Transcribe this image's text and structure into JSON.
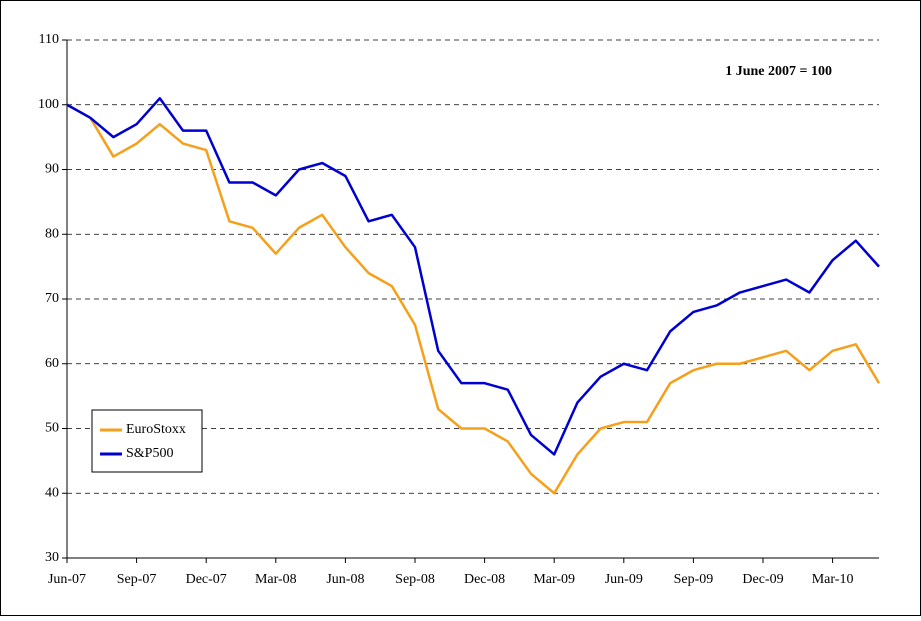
{
  "chart_data": {
    "type": "line",
    "annotation": "1 June 2007 = 100",
    "categories": [
      "Jun-07",
      null,
      null,
      "Sep-07",
      null,
      null,
      "Dec-07",
      null,
      null,
      "Mar-08",
      null,
      null,
      "Jun-08",
      null,
      null,
      "Sep-08",
      null,
      null,
      "Dec-08",
      null,
      null,
      "Mar-09",
      null,
      null,
      "Jun-09",
      null,
      null,
      "Sep-09",
      null,
      null,
      "Dec-09",
      null,
      null,
      "Mar-10",
      null,
      null
    ],
    "series": [
      {
        "name": "EuroStoxx",
        "color": "#f5a01a",
        "values": [
          100,
          98,
          92,
          94,
          97,
          94,
          93,
          82,
          81,
          77,
          81,
          83,
          78,
          74,
          72,
          66,
          53,
          50,
          50,
          48,
          43,
          40,
          46,
          50,
          51,
          51,
          57,
          59,
          60,
          60,
          61,
          62,
          59,
          62,
          63,
          57
        ]
      },
      {
        "name": "S&P500",
        "color": "#0000d0",
        "values": [
          100,
          98,
          95,
          97,
          101,
          96,
          96,
          88,
          88,
          86,
          90,
          91,
          89,
          82,
          83,
          78,
          62,
          57,
          57,
          56,
          49,
          46,
          54,
          58,
          60,
          59,
          65,
          68,
          69,
          71,
          72,
          73,
          71,
          76,
          79,
          75
        ]
      }
    ],
    "ylim": [
      30,
      110
    ],
    "yticks": [
      30,
      40,
      50,
      60,
      70,
      80,
      90,
      100,
      110
    ],
    "grid": true,
    "legend": "lower-left"
  }
}
